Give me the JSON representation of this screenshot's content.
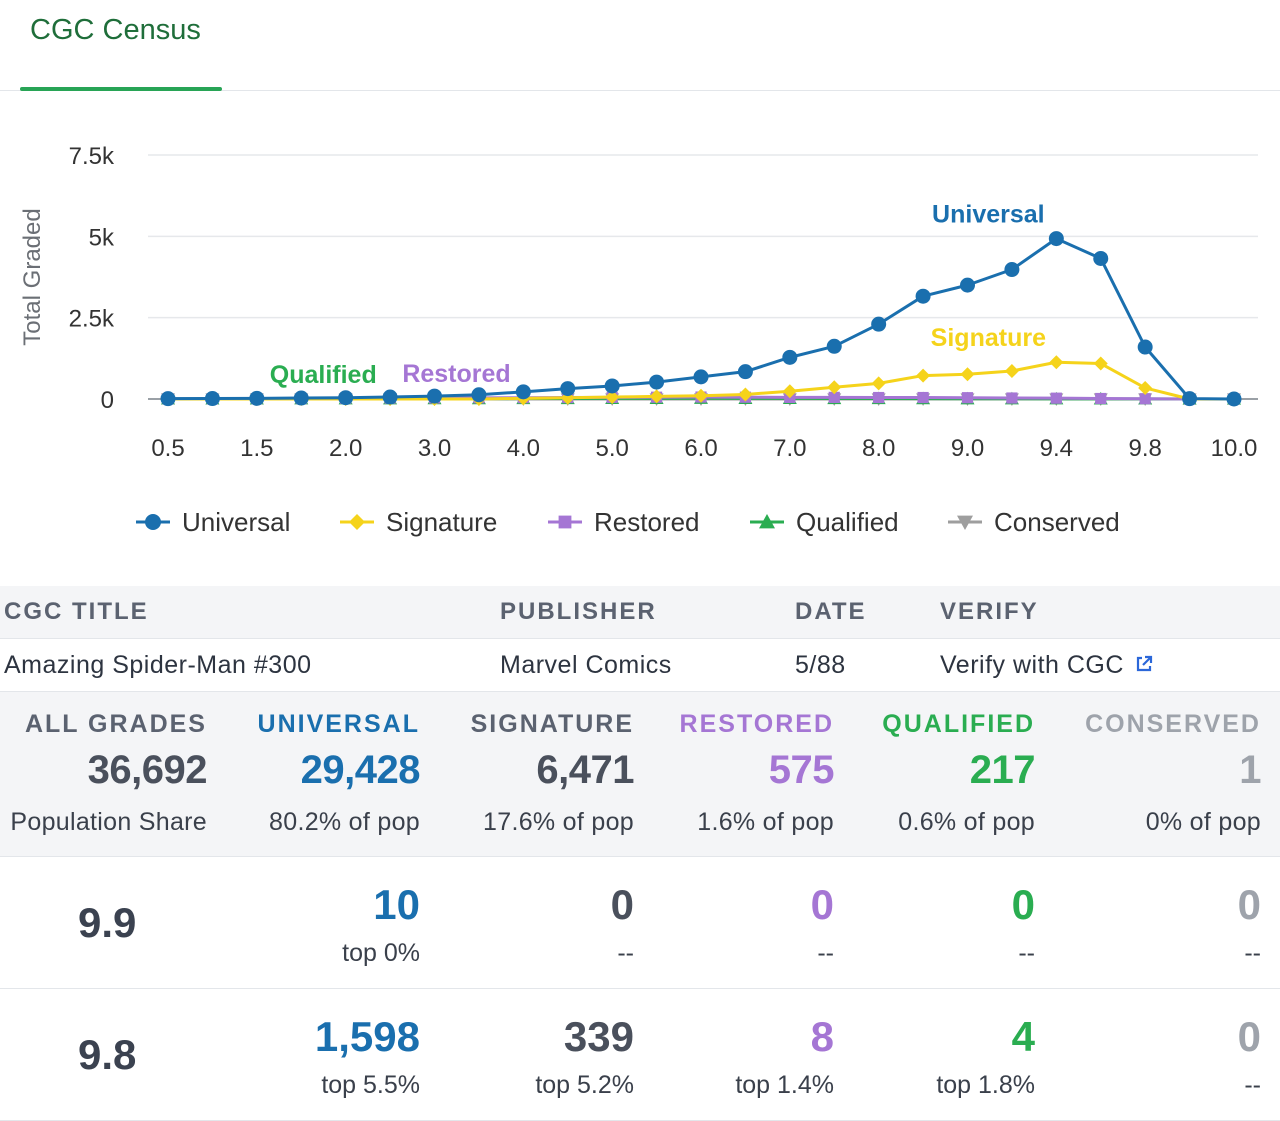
{
  "tabs": [
    {
      "label": "CGC Census",
      "active": true
    }
  ],
  "chart_data": {
    "type": "line",
    "ylabel": "Total Graded",
    "xlabel": "",
    "ylim": [
      0,
      7500
    ],
    "y_ticks": [
      {
        "value": 0,
        "label": "0"
      },
      {
        "value": 2500,
        "label": "2.5k"
      },
      {
        "value": 5000,
        "label": "5k"
      },
      {
        "value": 7500,
        "label": "7.5k"
      }
    ],
    "categories": [
      "0.5",
      "1.0",
      "1.5",
      "1.8",
      "2.0",
      "2.5",
      "3.0",
      "3.5",
      "4.0",
      "4.5",
      "5.0",
      "5.5",
      "6.0",
      "6.5",
      "7.0",
      "7.5",
      "8.0",
      "8.5",
      "9.0",
      "9.2",
      "9.4",
      "9.6",
      "9.8",
      "9.9",
      "10.0"
    ],
    "tick_labels": [
      "0.5",
      "1.5",
      "2.0",
      "3.0",
      "4.0",
      "5.0",
      "6.0",
      "7.0",
      "8.0",
      "9.0",
      "9.4",
      "9.8",
      "10.0"
    ],
    "tick_label_indices": [
      0,
      2,
      4,
      6,
      8,
      10,
      12,
      14,
      16,
      18,
      20,
      22,
      24
    ],
    "grid": true,
    "legend_position": "bottom",
    "series": [
      {
        "name": "Universal",
        "color": "#1a6fae",
        "marker": "circle",
        "label_at": 20,
        "values": [
          10,
          15,
          20,
          30,
          40,
          60,
          90,
          130,
          220,
          320,
          400,
          520,
          680,
          840,
          1280,
          1620,
          2300,
          3160,
          3500,
          3980,
          4930,
          4320,
          1598,
          10,
          0
        ]
      },
      {
        "name": "Signature",
        "color": "#f5d31b",
        "marker": "diamond",
        "label_at": 20,
        "values": [
          0,
          0,
          0,
          0,
          0,
          0,
          0,
          0,
          20,
          40,
          60,
          80,
          100,
          140,
          240,
          360,
          480,
          720,
          760,
          860,
          1130,
          1090,
          339,
          0,
          0
        ]
      },
      {
        "name": "Restored",
        "color": "#a576d4",
        "marker": "square",
        "label_at": 6,
        "values": [
          5,
          5,
          10,
          15,
          20,
          25,
          30,
          35,
          40,
          45,
          50,
          55,
          60,
          55,
          50,
          50,
          45,
          45,
          40,
          30,
          25,
          15,
          8,
          0,
          0
        ]
      },
      {
        "name": "Qualified",
        "color": "#2aad51",
        "marker": "triangle-up",
        "label_at": 3,
        "values": [
          2,
          3,
          4,
          5,
          6,
          8,
          10,
          12,
          14,
          16,
          18,
          20,
          22,
          20,
          18,
          16,
          14,
          12,
          8,
          6,
          5,
          4,
          4,
          0,
          0
        ]
      },
      {
        "name": "Conserved",
        "color": "#9e9e9e",
        "marker": "triangle-down",
        "values": [
          0,
          0,
          0,
          0,
          0,
          0,
          0,
          0,
          0,
          0,
          0,
          0,
          0,
          0,
          0,
          0,
          0,
          0,
          0,
          0,
          0,
          0,
          0,
          0,
          1
        ]
      }
    ]
  },
  "book": {
    "headers": {
      "title": "CGC TITLE",
      "publisher": "PUBLISHER",
      "date": "DATE",
      "verify": "VERIFY"
    },
    "title": "Amazing Spider-Man #300",
    "publisher": "Marvel Comics",
    "date": "5/88",
    "verify_label": "Verify with CGC"
  },
  "summary": [
    {
      "key": "all",
      "header": "ALL GRADES",
      "value": "36,692",
      "sub": "Population Share"
    },
    {
      "key": "univ",
      "header": "UNIVERSAL",
      "value": "29,428",
      "sub": "80.2% of pop"
    },
    {
      "key": "sig",
      "header": "SIGNATURE",
      "value": "6,471",
      "sub": "17.6% of pop"
    },
    {
      "key": "rest",
      "header": "RESTORED",
      "value": "575",
      "sub": "1.6% of pop"
    },
    {
      "key": "qual",
      "header": "QUALIFIED",
      "value": "217",
      "sub": "0.6% of pop"
    },
    {
      "key": "cons",
      "header": "CONSERVED",
      "value": "1",
      "sub": "0% of pop"
    }
  ],
  "grades": [
    {
      "grade": "9.9",
      "cells": [
        {
          "value": "10",
          "sub": "top 0%"
        },
        {
          "value": "0",
          "sub": "--"
        },
        {
          "value": "0",
          "sub": "--"
        },
        {
          "value": "0",
          "sub": "--"
        },
        {
          "value": "0",
          "sub": "--"
        }
      ]
    },
    {
      "grade": "9.8",
      "cells": [
        {
          "value": "1,598",
          "sub": "top 5.5%"
        },
        {
          "value": "339",
          "sub": "top 5.2%"
        },
        {
          "value": "8",
          "sub": "top 1.4%"
        },
        {
          "value": "4",
          "sub": "top 1.8%"
        },
        {
          "value": "0",
          "sub": "--"
        }
      ]
    }
  ]
}
